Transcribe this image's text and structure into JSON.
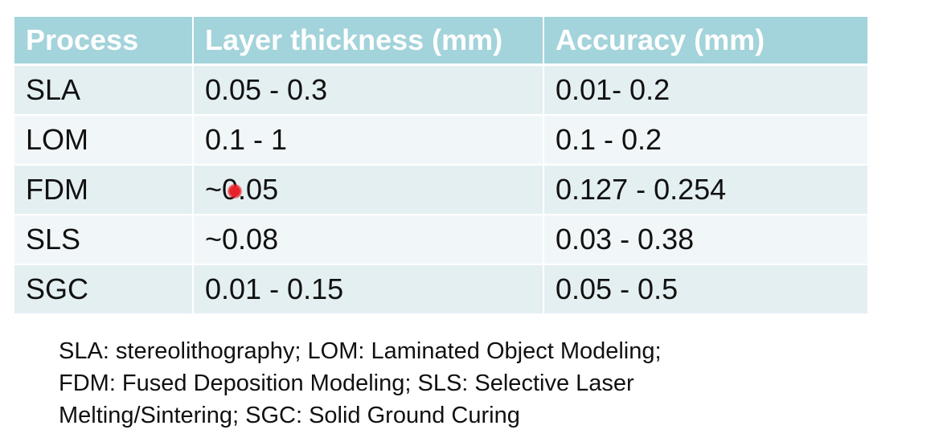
{
  "table": {
    "headers": [
      "Process",
      "Layer thickness (mm)",
      "Accuracy (mm)"
    ],
    "rows": [
      [
        "SLA",
        "0.05 - 0.3",
        "0.01- 0.2"
      ],
      [
        "LOM",
        "0.1 - 1",
        "0.1 - 0.2"
      ],
      [
        "FDM",
        "~0.05",
        "0.127 - 0.254"
      ],
      [
        "SLS",
        "~0.08",
        "0.03 - 0.38"
      ],
      [
        "SGC",
        "0.01 - 0.15",
        "0.05 - 0.5"
      ]
    ]
  },
  "caption": {
    "lines": [
      "SLA: stereolithography; LOM: Laminated Object Modeling;",
      "FDM: Fused Deposition Modeling; SLS: Selective Laser",
      "Melting/Sintering; SGC: Solid Ground Curing"
    ]
  },
  "colors": {
    "header_bg": "#a3d3db",
    "row_odd_bg": "#e4eff2",
    "row_even_bg": "#f1f7f8",
    "pointer": "#e8202a"
  }
}
